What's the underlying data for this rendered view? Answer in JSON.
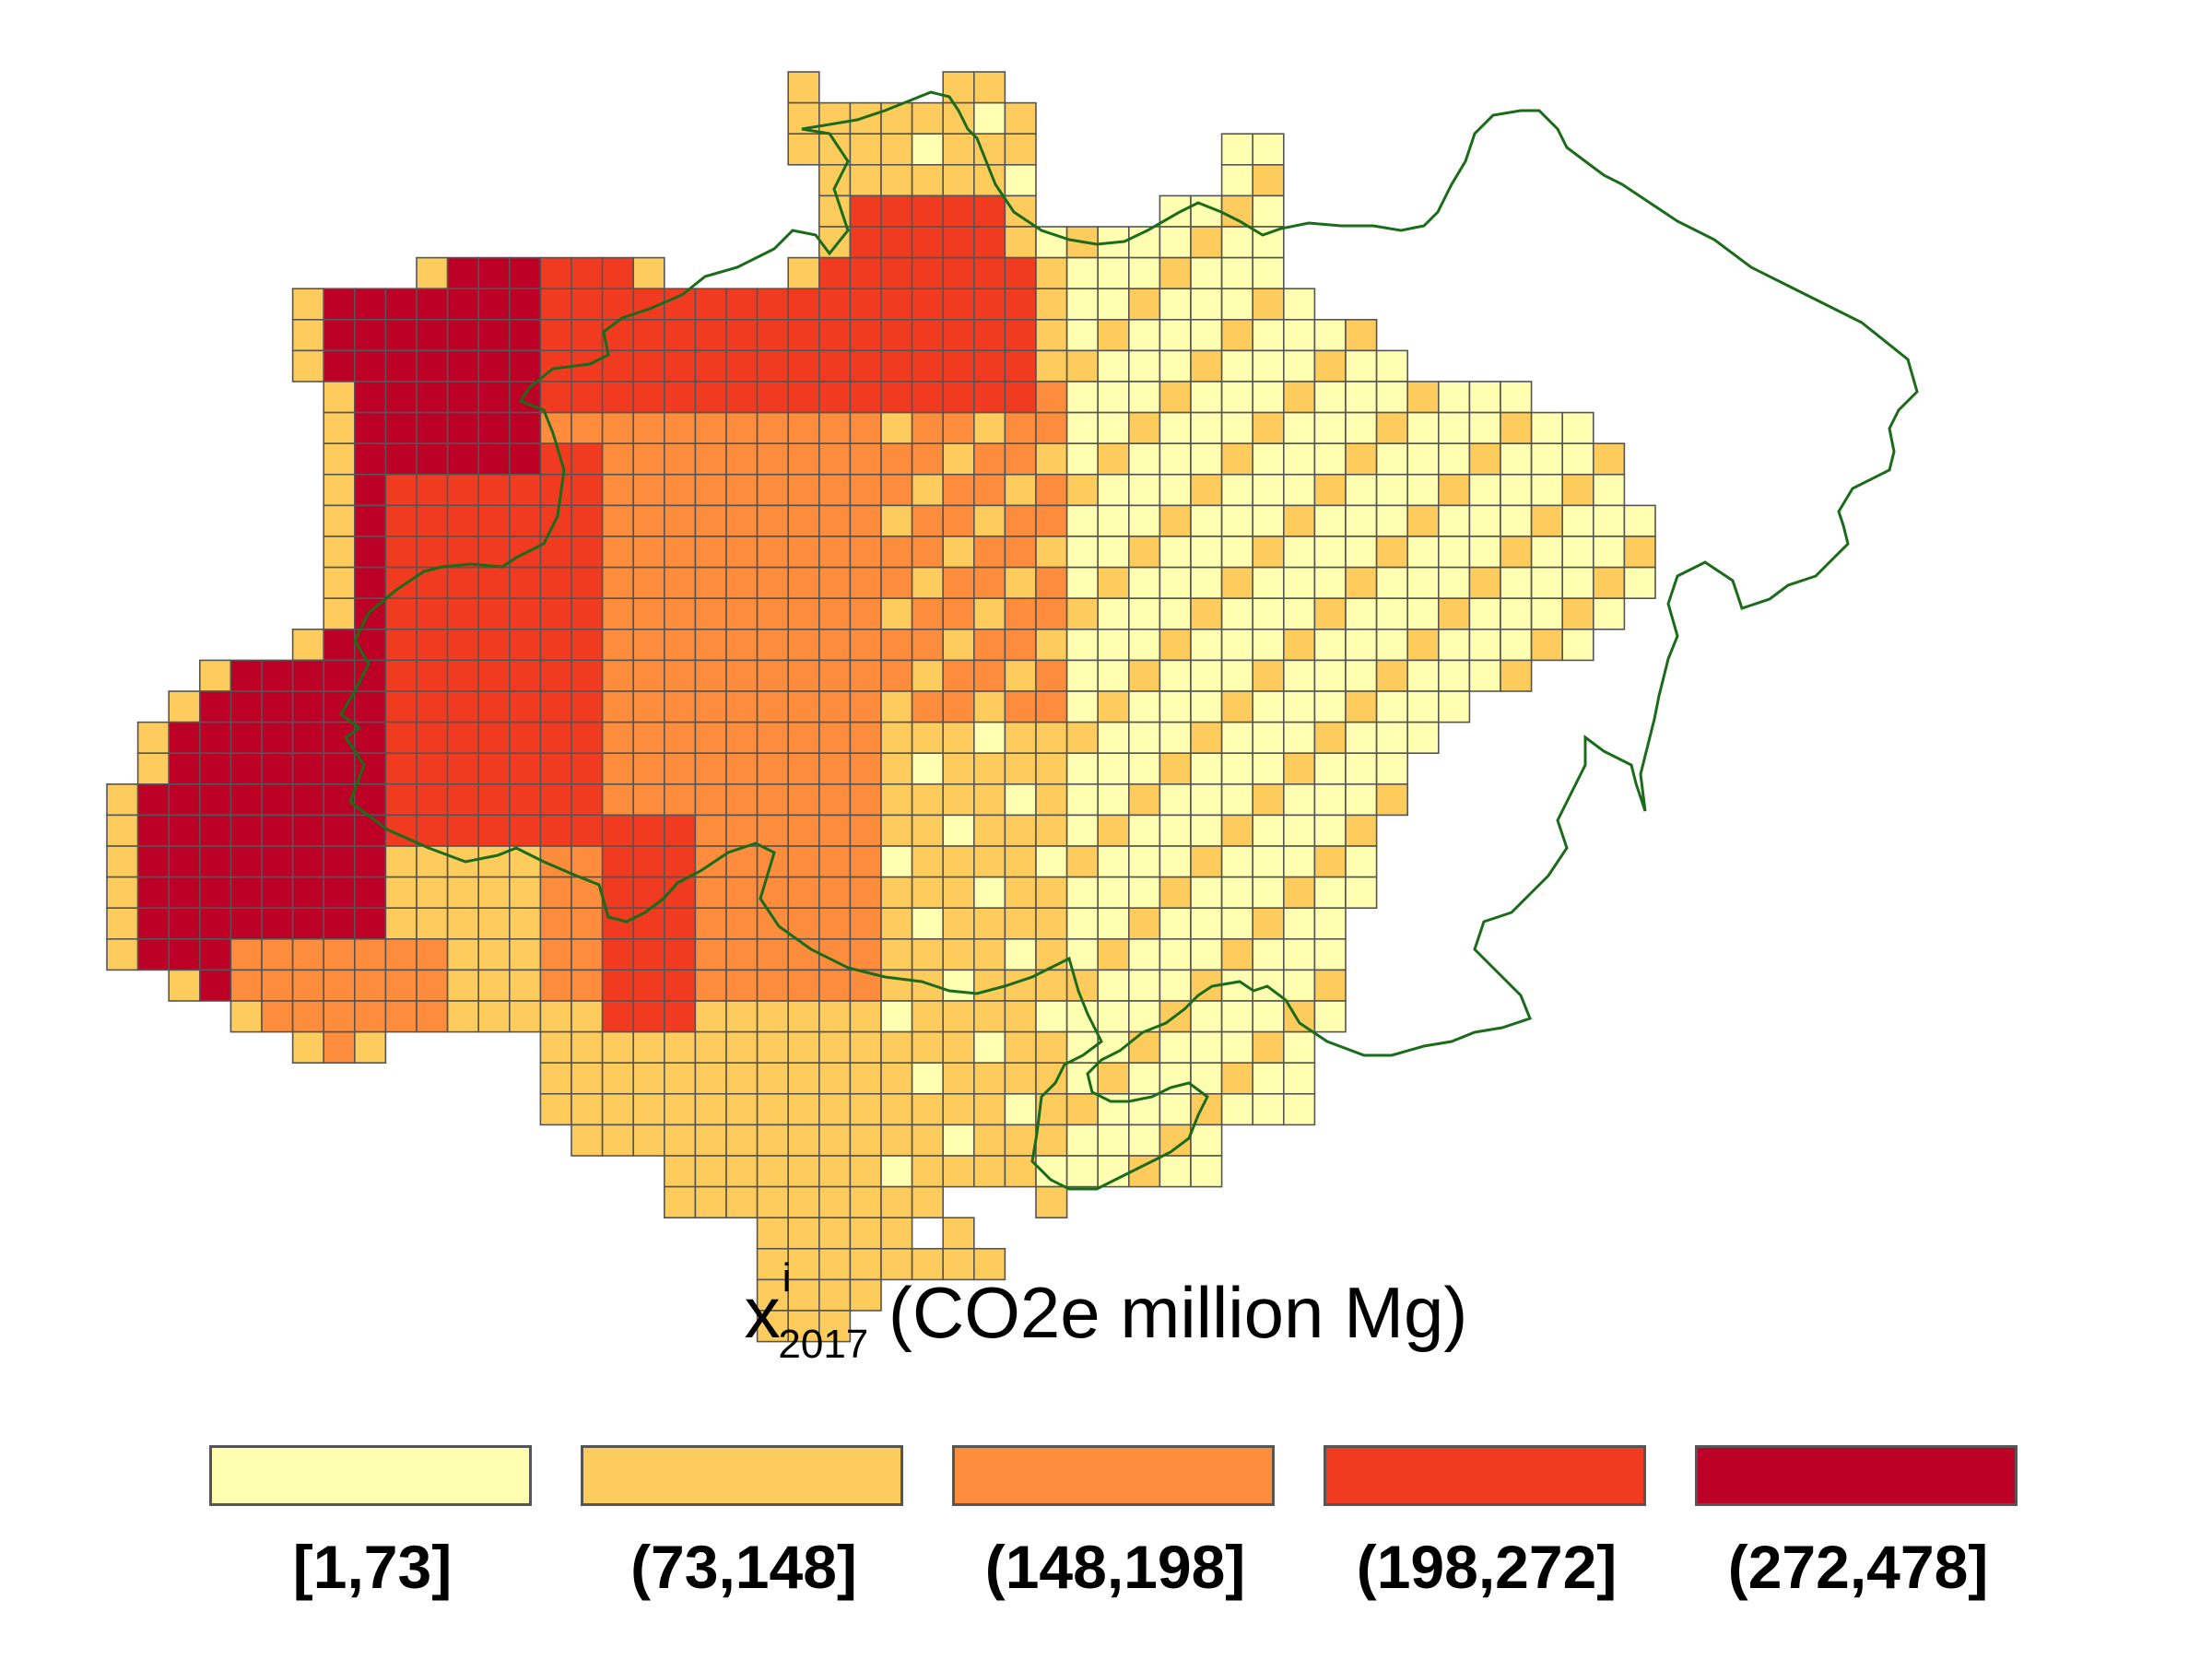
{
  "legend": {
    "title": {
      "var": "x",
      "sup": "i",
      "sub": "2017",
      "unit": " (CO2e million Mg)"
    },
    "classes": [
      {
        "label": "[1,73]",
        "color": "#ffffb2"
      },
      {
        "label": "(73,148]",
        "color": "#fecc5c"
      },
      {
        "label": "(148,198]",
        "color": "#fd8d3c"
      },
      {
        "label": "(198,272]",
        "color": "#f03b20"
      },
      {
        "label": "(272,478]",
        "color": "#bd0026"
      }
    ]
  },
  "map": {
    "grid_line_color": "#555555",
    "boundary_color": "#1a6b1a"
  }
}
